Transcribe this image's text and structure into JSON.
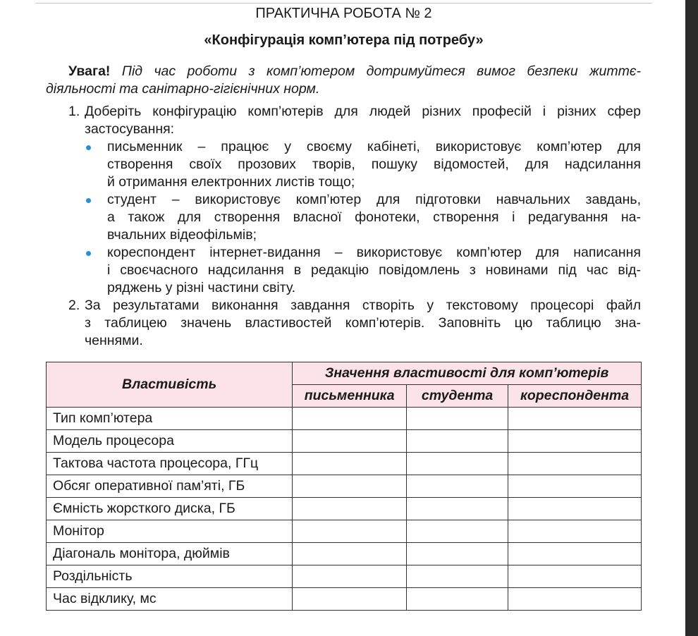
{
  "header": {
    "title": "ПРАКТИЧНА РОБОТА № 2",
    "subtitle": "«Конфігурація комп’ютера під потребу»"
  },
  "warning": {
    "label": "Увага!",
    "line1": "Під час роботи з комп’ютером дотримуйтеся вимог безпеки життє-",
    "line2": "діяльності та санітарно-гігієнічних норм."
  },
  "tasks": [
    {
      "number": "1.",
      "lines": [
        "Доберіть конфігурацію комп’ютерів для людей різних професій і різних сфер",
        "застосування:"
      ]
    },
    {
      "number": "2.",
      "lines": [
        "За результатами виконання завдання створіть у текстовому процесорі файл",
        "з таблицею значень властивостей комп’ютерів. Заповніть цю таблицю зна-",
        "ченнями."
      ]
    }
  ],
  "bullets": [
    {
      "lines": [
        "письменник – працює у своєму кабінеті, використовує комп’ютер для",
        "створення своїх прозових творів, пошуку відомостей, для надсилання",
        "й отримання електронних листів тощо;"
      ]
    },
    {
      "lines": [
        "студент – використовує комп’ютер для підготовки навчальних завдань,",
        "а також для створення власної фонотеки, створення і редагування на-",
        "вчальних відеофільмів;"
      ]
    },
    {
      "lines": [
        "кореспондент інтернет-видання – використовує комп’ютер для написання",
        "і своєчасного надсилання в редакцію повідомлень з новинами під час від-",
        "ряджень у різні частини світу."
      ]
    }
  ],
  "colors": {
    "bullet": "#2a8fd0",
    "table_header_bg": "#fbe3e8"
  },
  "table": {
    "property_header": "Властивість",
    "group_header": "Значення властивості для комп’ютерів",
    "columns": [
      "письменника",
      "студента",
      "кореспондента"
    ],
    "rows": [
      "Тип комп’ютера",
      "Модель процесора",
      "Тактова частота процесора, ГГц",
      "Обсяг оперативної пам’яті, ГБ",
      "Ємність жорсткого диска, ГБ",
      "Монітор",
      "Діагональ монітора, дюймів",
      "Роздільність",
      "Час відклику, мс"
    ]
  }
}
